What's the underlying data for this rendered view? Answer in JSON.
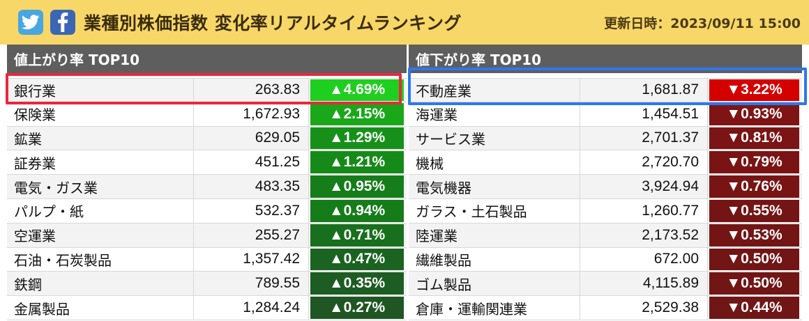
{
  "header": {
    "twitter_icon": "twitter-bird-icon",
    "facebook_icon": "facebook-f-icon",
    "title": "業種別株価指数 変化率リアルタイムランキング",
    "updated_label": "更新日時：2023/09/11 15:00"
  },
  "colors": {
    "header_bg": "#f7d767",
    "panel_head_bg": "#5e5e5e",
    "up_top": "#1fcf1f",
    "down_top": "#d40000",
    "highlight_red": "#e8283f",
    "highlight_blue": "#2c78f0"
  },
  "gainers": {
    "title": "値上がり率 TOP10",
    "rows": [
      {
        "name": "銀行業",
        "value": "263.83",
        "change": "▲4.69%",
        "color": "#1fcf1f"
      },
      {
        "name": "保険業",
        "value": "1,672.93",
        "change": "▲2.15%",
        "color": "#1aa71a"
      },
      {
        "name": "鉱業",
        "value": "629.05",
        "change": "▲1.29%",
        "color": "#17901a"
      },
      {
        "name": "証券業",
        "value": "451.25",
        "change": "▲1.21%",
        "color": "#168a19"
      },
      {
        "name": "電気・ガス業",
        "value": "483.35",
        "change": "▲0.95%",
        "color": "#157d19"
      },
      {
        "name": "パルプ・紙",
        "value": "532.37",
        "change": "▲0.94%",
        "color": "#157c19"
      },
      {
        "name": "空運業",
        "value": "255.27",
        "change": "▲0.71%",
        "color": "#186f1d"
      },
      {
        "name": "石油・石炭製品",
        "value": "1,357.42",
        "change": "▲0.47%",
        "color": "#1b6320"
      },
      {
        "name": "鉄鋼",
        "value": "789.55",
        "change": "▲0.35%",
        "color": "#1d5c22"
      },
      {
        "name": "金属製品",
        "value": "1,284.24",
        "change": "▲0.27%",
        "color": "#1f5623"
      }
    ]
  },
  "losers": {
    "title": "値下がり率 TOP10",
    "rows": [
      {
        "name": "不動産業",
        "value": "1,681.87",
        "change": "▼3.22%",
        "color": "#d40000"
      },
      {
        "name": "海運業",
        "value": "1,454.51",
        "change": "▼0.93%",
        "color": "#7e1414"
      },
      {
        "name": "サービス業",
        "value": "2,701.37",
        "change": "▼0.81%",
        "color": "#7b1414"
      },
      {
        "name": "機械",
        "value": "2,720.70",
        "change": "▼0.79%",
        "color": "#7a1414"
      },
      {
        "name": "電気機器",
        "value": "3,924.94",
        "change": "▼0.76%",
        "color": "#791414"
      },
      {
        "name": "ガラス・土石製品",
        "value": "1,260.77",
        "change": "▼0.55%",
        "color": "#741515"
      },
      {
        "name": "陸運業",
        "value": "2,173.52",
        "change": "▼0.53%",
        "color": "#731515"
      },
      {
        "name": "繊維製品",
        "value": "672.00",
        "change": "▼0.50%",
        "color": "#721515"
      },
      {
        "name": "ゴム製品",
        "value": "4,115.89",
        "change": "▼0.50%",
        "color": "#721515"
      },
      {
        "name": "倉庫・運輸関連業",
        "value": "2,529.38",
        "change": "▼0.44%",
        "color": "#701616"
      }
    ]
  }
}
